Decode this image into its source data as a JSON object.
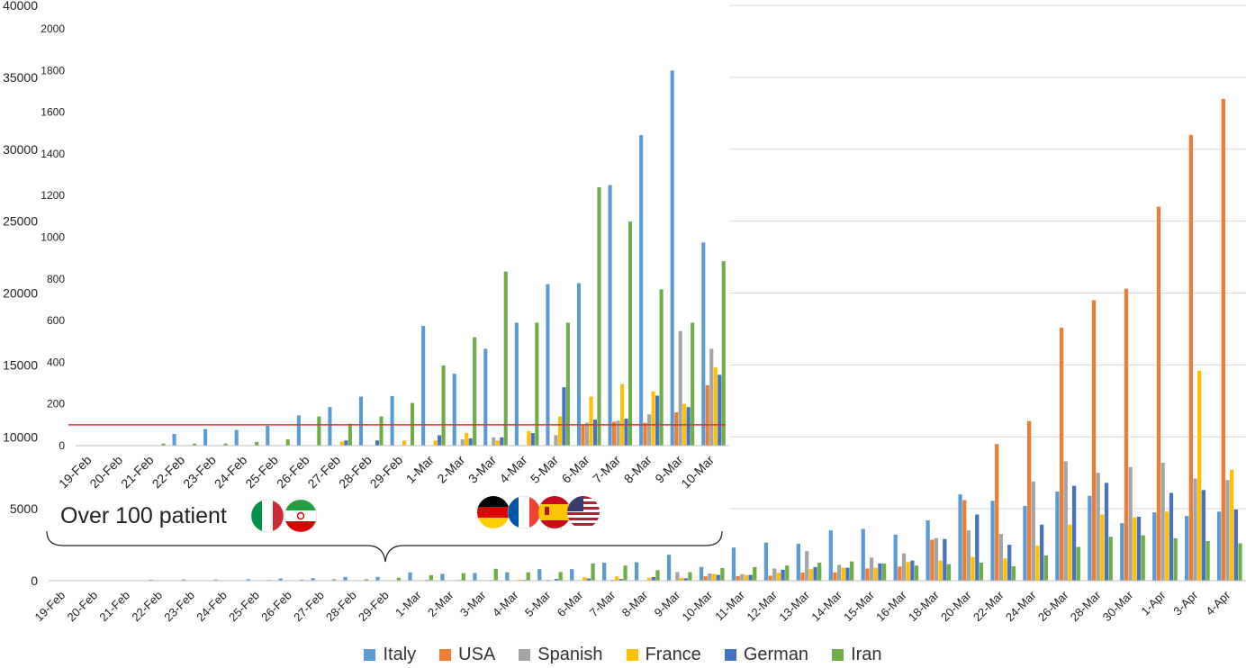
{
  "colors": {
    "Italy": "#5B9BD5",
    "USA": "#ED7D31",
    "Spanish": "#A5A5A5",
    "France": "#FFC000",
    "German": "#4472C4",
    "Iran": "#70AD47",
    "threshold_line": "#E03030"
  },
  "annotation": {
    "text": "Over 100 patient",
    "flags_group_1": [
      "italy-flag-icon",
      "iran-flag-icon"
    ],
    "flags_group_2": [
      "germany-flag-icon",
      "france-flag-icon",
      "spain-flag-icon",
      "usa-flag-icon"
    ]
  },
  "chart_data": [
    {
      "type": "bar",
      "title": "",
      "xlabel": "",
      "ylabel": "",
      "ylim": [
        0,
        40000
      ],
      "yticks": [
        "0",
        "5000",
        "10000",
        "15000",
        "20000",
        "25000",
        "30000",
        "35000",
        "40000"
      ],
      "grid": true,
      "legend": "bottom",
      "categories": [
        "19-Feb",
        "20-Feb",
        "21-Feb",
        "22-Feb",
        "23-Feb",
        "24-Feb",
        "25-Feb",
        "26-Feb",
        "27-Feb",
        "28-Feb",
        "29-Feb",
        "1-Mar",
        "2-Mar",
        "3-Mar",
        "4-Mar",
        "5-Mar",
        "6-Mar",
        "7-Mar",
        "8-Mar",
        "9-Mar",
        "10-Mar",
        "11-Mar",
        "12-Mar",
        "13-Mar",
        "14-Mar",
        "15-Mar",
        "16-Mar",
        "18-Mar",
        "20-Mar",
        "22-Mar",
        "24-Mar",
        "26-Mar",
        "28-Mar",
        "30-Mar",
        "1-Apr",
        "3-Apr",
        "4-Apr"
      ],
      "series": [
        {
          "name": "Italy",
          "values": [
            0,
            0,
            0,
            60,
            80,
            80,
            100,
            160,
            180,
            260,
            260,
            580,
            470,
            540,
            590,
            800,
            800,
            1250,
            1280,
            1800,
            960,
            2300,
            2650,
            2560,
            3500,
            3600,
            3200,
            4200,
            6000,
            5550,
            5200,
            6200,
            5900,
            4000,
            4750,
            4500,
            4800
          ]
        },
        {
          "name": "USA",
          "values": [
            0,
            0,
            0,
            0,
            0,
            0,
            0,
            0,
            0,
            0,
            0,
            0,
            0,
            0,
            0,
            0,
            0,
            0,
            0,
            0,
            300,
            320,
            350,
            560,
            580,
            850,
            980,
            2850,
            5600,
            9500,
            11100,
            17600,
            19500,
            20300,
            26000,
            31000,
            33500
          ]
        },
        {
          "name": "Spanish",
          "values": [
            0,
            0,
            0,
            0,
            0,
            0,
            0,
            0,
            0,
            0,
            0,
            0,
            0,
            40,
            0,
            60,
            0,
            60,
            0,
            600,
            500,
            450,
            850,
            2050,
            1100,
            1600,
            1900,
            2950,
            3500,
            3250,
            6900,
            8300,
            7500,
            7900,
            8200,
            7100,
            7000
          ]
        },
        {
          "name": "France",
          "values": [
            0,
            0,
            0,
            0,
            0,
            0,
            0,
            0,
            0,
            0,
            40,
            0,
            30,
            0,
            80,
            0,
            250,
            300,
            200,
            200,
            460,
            400,
            550,
            800,
            900,
            900,
            1300,
            1400,
            1650,
            1550,
            2450,
            3900,
            4600,
            4400,
            4800,
            14600,
            7700
          ]
        },
        {
          "name": "German",
          "values": [
            0,
            0,
            0,
            0,
            0,
            0,
            0,
            0,
            0,
            30,
            0,
            50,
            40,
            40,
            50,
            120,
            150,
            120,
            250,
            170,
            400,
            400,
            760,
            950,
            900,
            1200,
            1400,
            2900,
            4600,
            2500,
            3900,
            6600,
            6800,
            4450,
            6100,
            6300,
            4950
          ]
        },
        {
          "name": "Iran",
          "values": [
            0,
            0,
            10,
            10,
            20,
            10,
            50,
            70,
            100,
            100,
            200,
            380,
            520,
            830,
            580,
            600,
            1200,
            1050,
            730,
            590,
            880,
            950,
            1050,
            1250,
            1340,
            1200,
            1050,
            1150,
            1250,
            1000,
            1750,
            2350,
            3050,
            3150,
            2950,
            2750,
            2600
          ]
        }
      ]
    },
    {
      "type": "bar",
      "title": "",
      "xlabel": "",
      "ylabel": "",
      "ylim": [
        0,
        2000
      ],
      "yticks": [
        "0",
        "200",
        "400",
        "600",
        "800",
        "1000",
        "1200",
        "1400",
        "1600",
        "1800",
        "2000"
      ],
      "grid": true,
      "reference_line": 100,
      "categories": [
        "19-Feb",
        "20-Feb",
        "21-Feb",
        "22-Feb",
        "23-Feb",
        "24-Feb",
        "25-Feb",
        "26-Feb",
        "27-Feb",
        "28-Feb",
        "29-Feb",
        "1-Mar",
        "2-Mar",
        "3-Mar",
        "4-Mar",
        "5-Mar",
        "6-Mar",
        "7-Mar",
        "8-Mar",
        "9-Mar",
        "10-Mar"
      ],
      "series": [
        {
          "name": "Italy",
          "values": [
            0,
            0,
            0,
            56,
            80,
            75,
            95,
            145,
            185,
            235,
            238,
            575,
            345,
            465,
            590,
            775,
            780,
            1250,
            1490,
            1800,
            975
          ]
        },
        {
          "name": "USA",
          "values": [
            0,
            0,
            0,
            0,
            0,
            0,
            0,
            0,
            0,
            0,
            0,
            0,
            0,
            0,
            0,
            0,
            100,
            115,
            110,
            160,
            290
          ]
        },
        {
          "name": "Spanish",
          "values": [
            0,
            0,
            0,
            0,
            0,
            0,
            0,
            0,
            0,
            0,
            0,
            0,
            30,
            40,
            0,
            50,
            110,
            120,
            150,
            550,
            465
          ]
        },
        {
          "name": "France",
          "values": [
            0,
            0,
            0,
            0,
            0,
            0,
            0,
            0,
            20,
            0,
            25,
            25,
            60,
            25,
            70,
            140,
            235,
            295,
            260,
            200,
            375
          ]
        },
        {
          "name": "German",
          "values": [
            0,
            0,
            0,
            0,
            0,
            0,
            0,
            0,
            25,
            25,
            0,
            50,
            35,
            40,
            60,
            280,
            125,
            130,
            240,
            185,
            340
          ]
        },
        {
          "name": "Iran",
          "values": [
            0,
            0,
            10,
            10,
            10,
            18,
            30,
            140,
            105,
            140,
            205,
            385,
            520,
            835,
            590,
            590,
            1240,
            1075,
            750,
            590,
            885
          ]
        }
      ]
    }
  ]
}
